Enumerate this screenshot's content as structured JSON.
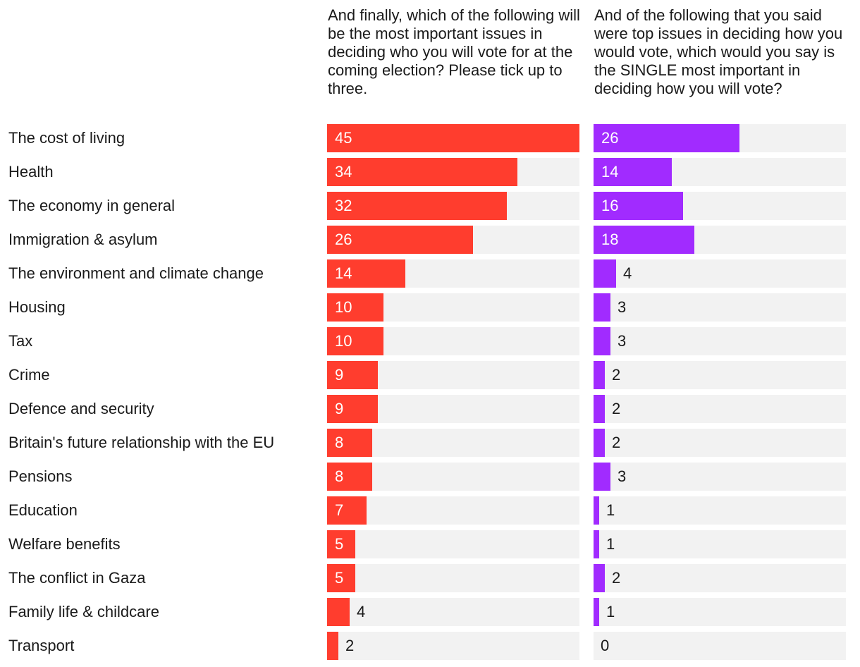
{
  "chart_data": {
    "type": "bar",
    "orientation": "horizontal",
    "categories": [
      "The cost of living",
      "Health",
      "The economy in general",
      "Immigration & asylum",
      "The environment and climate change",
      "Housing",
      "Tax",
      "Crime",
      "Defence and security",
      "Britain's future relationship with the EU",
      "Pensions",
      "Education",
      "Welfare benefits",
      "The conflict in Gaza",
      "Family life & childcare",
      "Transport"
    ],
    "series": [
      {
        "name": "And finally, which of the following will be the most important issues in deciding who you will vote for at the coming election? Please tick up to three.",
        "values": [
          45,
          34,
          32,
          26,
          14,
          10,
          10,
          9,
          9,
          8,
          8,
          7,
          5,
          5,
          4,
          2
        ],
        "color": "#ff3d2e",
        "xlim": [
          0,
          45
        ]
      },
      {
        "name": "And of the following that you said were top issues in deciding how you would vote, which would you say is the SINGLE most important in deciding how you will vote?",
        "values": [
          26,
          14,
          16,
          18,
          4,
          3,
          3,
          2,
          2,
          2,
          3,
          1,
          1,
          2,
          1,
          0
        ],
        "color": "#a12bff",
        "xlim": [
          0,
          45
        ]
      }
    ],
    "track_color": "#f2f2f2"
  }
}
